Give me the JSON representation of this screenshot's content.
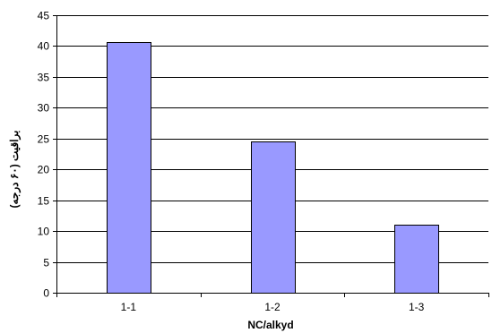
{
  "chart_data": {
    "type": "bar",
    "categories": [
      "1-1",
      "1-2",
      "1-3"
    ],
    "values": [
      40.7,
      24.5,
      11.0
    ],
    "xlabel": "NC/alkyd",
    "ylabel": "براقیت (۶۰ درجه)",
    "ylim": [
      0,
      45
    ],
    "yticks": [
      0,
      5,
      10,
      15,
      20,
      25,
      30,
      35,
      40,
      45
    ],
    "grid": "horizontal",
    "legend": "none",
    "colors": {
      "bar_fill": "#9999ff",
      "bar_stroke": "#000000",
      "grid": "#000000",
      "axis": "#000000"
    }
  }
}
